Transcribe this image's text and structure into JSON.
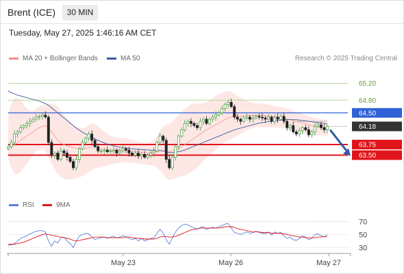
{
  "header": {
    "symbol": "Brent (ICE)",
    "timeframe": "30 MIN",
    "timestamp": "Tuesday, May 27, 2025 1:46:16 AM CET"
  },
  "legend": {
    "ma20": {
      "label": "MA 20 + Bollinger Bands",
      "color": "#f28b82"
    },
    "ma50": {
      "label": "MA 50",
      "color": "#3a5a9a"
    },
    "copyright": "Research © 2025 Trading Central"
  },
  "chart_data": [
    {
      "type": "candlestick",
      "title": "",
      "ylim": [
        62.6,
        65.55
      ],
      "x_labels": [
        "May 23",
        "May 26",
        "May 27"
      ],
      "levels": [
        {
          "name": "level-65-20",
          "label": "65.20",
          "value": 65.2,
          "color": "#b7d99a",
          "style": "thin",
          "tag": false
        },
        {
          "name": "level-64-80",
          "label": "64.80",
          "value": 64.8,
          "color": "#b7d99a",
          "style": "thin",
          "tag": false
        },
        {
          "name": "level-64-50",
          "label": "64.50",
          "value": 64.5,
          "color": "#2f62d6",
          "style": "medium",
          "tag": true
        },
        {
          "name": "level-63-75",
          "label": "63.75",
          "value": 63.75,
          "color": "#e0151b",
          "style": "thick",
          "tag": true
        },
        {
          "name": "level-63-50",
          "label": "63.50",
          "value": 63.5,
          "color": "#e0151b",
          "style": "thick",
          "tag": true
        }
      ],
      "last_price": {
        "label": "64.18",
        "value": 64.18,
        "color": "#333333"
      },
      "projection": {
        "from": 64.1,
        "to": 63.5
      },
      "close": [
        63.7,
        63.8,
        64.0,
        64.05,
        64.15,
        64.2,
        64.25,
        64.3,
        64.35,
        64.4,
        64.42,
        64.45,
        64.4,
        63.8,
        63.5,
        63.55,
        63.4,
        63.6,
        63.55,
        63.45,
        63.35,
        63.2,
        63.4,
        63.65,
        63.8,
        63.9,
        64.0,
        63.85,
        63.7,
        63.6,
        63.6,
        63.62,
        63.58,
        63.6,
        63.62,
        63.55,
        63.6,
        63.65,
        63.62,
        63.55,
        63.5,
        63.55,
        63.48,
        63.52,
        63.45,
        63.5,
        63.55,
        63.6,
        63.8,
        63.95,
        63.85,
        63.4,
        63.2,
        63.45,
        63.7,
        63.95,
        64.1,
        64.25,
        64.3,
        64.25,
        64.2,
        64.15,
        64.3,
        64.35,
        64.25,
        64.35,
        64.4,
        64.45,
        64.5,
        64.6,
        64.7,
        64.75,
        64.65,
        64.4,
        64.35,
        64.3,
        64.38,
        64.4,
        64.35,
        64.38,
        64.42,
        64.4,
        64.38,
        64.35,
        64.4,
        64.3,
        64.4,
        64.35,
        64.42,
        64.3,
        64.15,
        64.2,
        64.05,
        64.0,
        64.08,
        64.15,
        64.1,
        63.98,
        64.05,
        64.18,
        64.22,
        64.15,
        64.1,
        64.18
      ],
      "ma20": [
        63.7,
        63.7,
        63.75,
        63.8,
        63.85,
        63.9,
        63.95,
        64.0,
        64.05,
        64.1,
        64.15,
        64.18,
        64.2,
        64.15,
        64.05,
        63.95,
        63.85,
        63.8,
        63.75,
        63.72,
        63.7,
        63.68,
        63.66,
        63.65,
        63.65,
        63.66,
        63.68,
        63.7,
        63.7,
        63.68,
        63.65,
        63.63,
        63.62,
        63.62,
        63.62,
        63.62,
        63.62,
        63.62,
        63.61,
        63.6,
        63.59,
        63.58,
        63.58,
        63.57,
        63.57,
        63.56,
        63.56,
        63.57,
        63.58,
        63.6,
        63.6,
        63.58,
        63.58,
        63.6,
        63.63,
        63.66,
        63.7,
        63.75,
        63.8,
        63.85,
        63.9,
        63.95,
        64.0,
        64.05,
        64.1,
        64.14,
        64.18,
        64.22,
        64.26,
        64.3,
        64.34,
        64.38,
        64.4,
        64.42,
        64.42,
        64.42,
        64.43,
        64.43,
        64.44,
        64.44,
        64.44,
        64.44,
        64.44,
        64.43,
        64.43,
        64.42,
        64.41,
        64.4,
        64.39,
        64.38,
        64.36,
        64.34,
        64.32,
        64.3,
        64.28,
        64.26,
        64.24,
        64.22,
        64.2,
        64.18,
        64.17,
        64.16,
        64.15,
        64.15
      ],
      "bb_upper": [
        64.5,
        64.7,
        64.85,
        64.85,
        64.8,
        64.7,
        64.6,
        64.55,
        64.55,
        64.6,
        64.65,
        64.68,
        64.7,
        64.72,
        64.72,
        64.7,
        64.65,
        64.55,
        64.45,
        64.35,
        64.28,
        64.22,
        64.18,
        64.15,
        64.14,
        64.16,
        64.22,
        64.25,
        64.24,
        64.18,
        64.12,
        64.06,
        64.0,
        63.96,
        63.94,
        63.92,
        63.9,
        63.9,
        63.9,
        63.88,
        63.86,
        63.84,
        63.82,
        63.8,
        63.8,
        63.8,
        63.82,
        63.86,
        63.95,
        64.08,
        64.18,
        64.22,
        64.24,
        64.3,
        64.38,
        64.45,
        64.52,
        64.6,
        64.65,
        64.7,
        64.72,
        64.72,
        64.72,
        64.74,
        64.76,
        64.8,
        64.85,
        64.9,
        64.95,
        64.98,
        65.0,
        65.02,
        65.0,
        64.95,
        64.9,
        64.86,
        64.82,
        64.78,
        64.76,
        64.74,
        64.72,
        64.72,
        64.72,
        64.7,
        64.7,
        64.68,
        64.66,
        64.65,
        64.64,
        64.62,
        64.6,
        64.58,
        64.55,
        64.52,
        64.5,
        64.48,
        64.45,
        64.42,
        64.4,
        64.38,
        64.36,
        64.35,
        64.34,
        64.34
      ],
      "bb_lower": [
        63.4,
        63.2,
        63.05,
        63.05,
        63.1,
        63.2,
        63.3,
        63.4,
        63.5,
        63.6,
        63.62,
        63.65,
        63.6,
        63.45,
        63.3,
        63.15,
        63.05,
        62.98,
        62.95,
        62.92,
        62.92,
        62.93,
        62.95,
        62.98,
        63.0,
        63.05,
        63.1,
        63.15,
        63.18,
        63.2,
        63.22,
        63.24,
        63.25,
        63.28,
        63.3,
        63.31,
        63.32,
        63.33,
        63.33,
        63.32,
        63.32,
        63.31,
        63.3,
        63.29,
        63.28,
        63.27,
        63.26,
        63.24,
        63.2,
        63.15,
        63.05,
        62.95,
        62.92,
        62.93,
        62.95,
        62.98,
        63.0,
        63.02,
        63.05,
        63.1,
        63.15,
        63.2,
        63.28,
        63.36,
        63.44,
        63.5,
        63.56,
        63.62,
        63.68,
        63.74,
        63.8,
        63.84,
        63.88,
        63.92,
        63.96,
        64.0,
        64.04,
        64.08,
        64.12,
        64.14,
        64.16,
        64.16,
        64.16,
        64.16,
        64.16,
        64.16,
        64.16,
        64.15,
        64.14,
        64.13,
        64.12,
        64.1,
        64.08,
        64.06,
        64.04,
        64.02,
        64.0,
        63.98,
        63.98,
        63.97,
        63.97,
        63.96,
        63.96,
        63.96
      ],
      "ma50": [
        65.02,
        64.98,
        64.95,
        64.92,
        64.9,
        64.88,
        64.86,
        64.84,
        64.82,
        64.8,
        64.78,
        64.75,
        64.72,
        64.68,
        64.62,
        64.56,
        64.5,
        64.44,
        64.38,
        64.32,
        64.26,
        64.2,
        64.14,
        64.09,
        64.04,
        64.0,
        63.96,
        63.92,
        63.88,
        63.85,
        63.82,
        63.79,
        63.76,
        63.74,
        63.72,
        63.7,
        63.69,
        63.68,
        63.67,
        63.66,
        63.65,
        63.64,
        63.64,
        63.63,
        63.63,
        63.62,
        63.62,
        63.62,
        63.61,
        63.61,
        63.6,
        63.58,
        63.56,
        63.56,
        63.57,
        63.58,
        63.6,
        63.62,
        63.65,
        63.68,
        63.71,
        63.74,
        63.77,
        63.8,
        63.83,
        63.86,
        63.89,
        63.92,
        63.95,
        63.98,
        64.01,
        64.04,
        64.07,
        64.1,
        64.12,
        64.14,
        64.16,
        64.18,
        64.2,
        64.22,
        64.24,
        64.26,
        64.27,
        64.28,
        64.29,
        64.3,
        64.31,
        64.32,
        64.33,
        64.34,
        64.34,
        64.34,
        64.34,
        64.34,
        64.33,
        64.32,
        64.31,
        64.3,
        64.29,
        64.28,
        64.27,
        64.26,
        64.25,
        64.24
      ]
    },
    {
      "type": "line",
      "title": "",
      "ylim": [
        25,
        80
      ],
      "y_ticks": [
        70,
        50,
        30
      ],
      "legend": [
        {
          "name": "RSI",
          "color": "#5b7fd6"
        },
        {
          "name": "9MA",
          "color": "#e0151b"
        }
      ],
      "rsi": [
        33,
        34,
        36,
        40,
        44,
        46,
        48,
        51,
        53,
        55,
        56,
        56,
        54,
        40,
        32,
        40,
        37,
        45,
        46,
        40,
        36,
        30,
        40,
        48,
        50,
        52,
        51,
        46,
        42,
        44,
        45,
        46,
        44,
        46,
        47,
        45,
        46,
        48,
        47,
        44,
        42,
        44,
        40,
        44,
        40,
        42,
        44,
        45,
        52,
        58,
        52,
        42,
        35,
        45,
        54,
        60,
        64,
        66,
        65,
        62,
        60,
        58,
        61,
        62,
        58,
        60,
        61,
        60,
        62,
        64,
        66,
        67,
        60,
        53,
        52,
        50,
        52,
        54,
        52,
        53,
        55,
        53,
        52,
        51,
        54,
        49,
        54,
        52,
        53,
        48,
        44,
        46,
        42,
        41,
        44,
        48,
        46,
        42,
        44,
        50,
        51,
        48,
        46,
        50
      ],
      "ma9": [
        35,
        35,
        35,
        36,
        37,
        38,
        40,
        42,
        44,
        46,
        48,
        50,
        51,
        50,
        49,
        48,
        47,
        46,
        45,
        44,
        43,
        41,
        40,
        41,
        42,
        43,
        44,
        45,
        46,
        46,
        46,
        46,
        45,
        45,
        45,
        45,
        45,
        45,
        46,
        46,
        45,
        45,
        44,
        44,
        43,
        43,
        43,
        43,
        44,
        46,
        47,
        47,
        46,
        46,
        47,
        49,
        51,
        53,
        55,
        57,
        58,
        59,
        60,
        60,
        60,
        60,
        60,
        60,
        60,
        61,
        62,
        62,
        62,
        61,
        59,
        58,
        57,
        56,
        55,
        54,
        54,
        54,
        53,
        53,
        53,
        52,
        52,
        52,
        52,
        51,
        50,
        49,
        48,
        47,
        46,
        46,
        45,
        45,
        45,
        45,
        46,
        46,
        47,
        47
      ]
    }
  ]
}
